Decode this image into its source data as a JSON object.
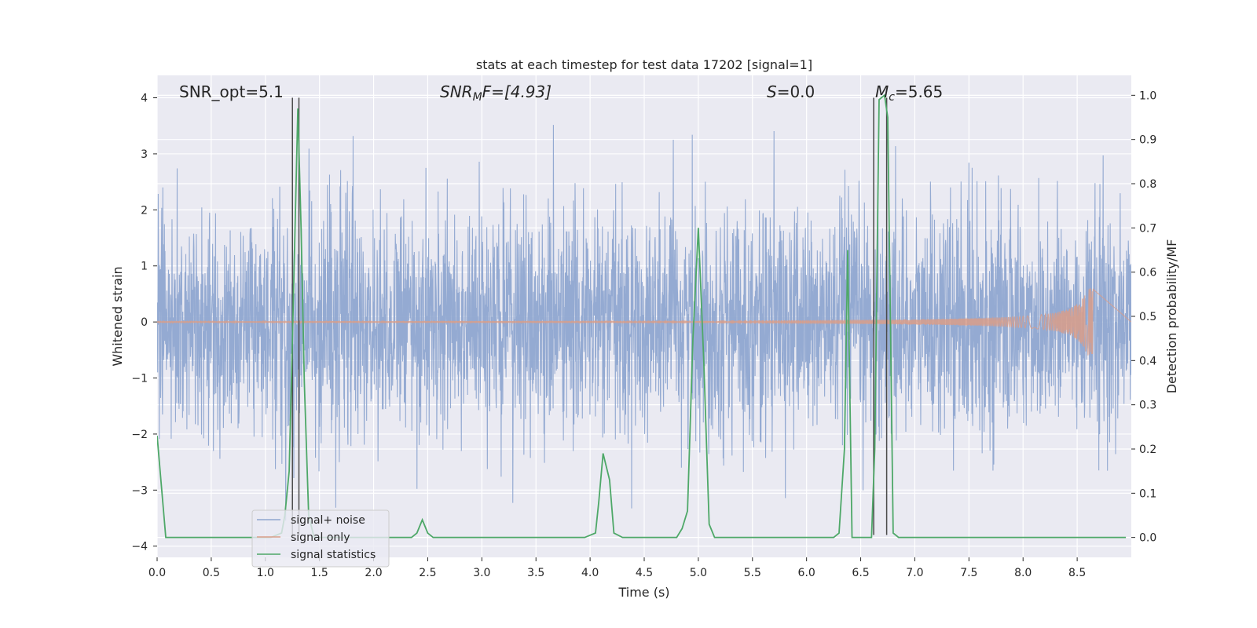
{
  "chart_data": {
    "type": "line",
    "title": "stats at each timestep for test data 17202 [signal=1]",
    "xlabel": "Time (s)",
    "ylabel_left": "Whitened strain",
    "ylabel_right": "Detection probability/MF",
    "xlim": [
      0.0,
      9.0
    ],
    "ylim_left": [
      -4.2,
      4.4
    ],
    "ylim_right": [
      -0.045,
      1.045
    ],
    "x_ticks": [
      "0.0",
      "0.5",
      "1.0",
      "1.5",
      "2.0",
      "2.5",
      "3.0",
      "3.5",
      "4.0",
      "4.5",
      "5.0",
      "5.5",
      "6.0",
      "6.5",
      "7.0",
      "7.5",
      "8.0",
      "8.5"
    ],
    "y_ticks_left": [
      "−4",
      "−3",
      "−2",
      "−1",
      "0",
      "1",
      "2",
      "3",
      "4"
    ],
    "y_ticks_right": [
      "0.0",
      "0.1",
      "0.2",
      "0.3",
      "0.4",
      "0.5",
      "0.6",
      "0.7",
      "0.8",
      "0.9",
      "1.0"
    ],
    "annotations": [
      "SNR_opt=5.1",
      "SNR",
      "M",
      "F=[4.93]",
      "S",
      "=0.0",
      "M",
      "c",
      "=5.65"
    ],
    "legend": [
      "signal+ noise",
      "signal only",
      "signal statistics"
    ],
    "series": [
      {
        "name": "signal+ noise",
        "color": "#8fa6d0",
        "description": "dense noise with standard deviation ~1",
        "noise_band": [
          -1.45,
          1.65
        ],
        "x_range": [
          0.0,
          9.0
        ]
      },
      {
        "name": "signal only",
        "color": "#d99e8a",
        "x_range": [
          0.0,
          8.65
        ],
        "amplitude_end": 0.6
      },
      {
        "name": "signal statistics",
        "color": "#4ea868",
        "axis": "right",
        "x": [
          0.0,
          0.08,
          0.15,
          0.25,
          0.35,
          0.45,
          0.55,
          0.65,
          0.75,
          0.85,
          0.95,
          1.05,
          1.15,
          1.18,
          1.22,
          1.26,
          1.3,
          1.33,
          1.36,
          1.4,
          1.45,
          1.55,
          1.65,
          1.75,
          1.85,
          1.95,
          2.05,
          2.15,
          2.25,
          2.35,
          2.4,
          2.45,
          2.5,
          2.55,
          2.65,
          2.75,
          2.85,
          2.95,
          3.05,
          3.15,
          3.25,
          3.35,
          3.45,
          3.55,
          3.65,
          3.75,
          3.85,
          3.95,
          4.05,
          4.08,
          4.12,
          4.18,
          4.22,
          4.3,
          4.4,
          4.5,
          4.6,
          4.7,
          4.8,
          4.85,
          4.9,
          4.95,
          5.0,
          5.05,
          5.1,
          5.15,
          5.25,
          5.35,
          5.45,
          5.55,
          5.65,
          5.75,
          5.85,
          5.95,
          6.05,
          6.15,
          6.25,
          6.3,
          6.35,
          6.38,
          6.42,
          6.5,
          6.6,
          6.63,
          6.67,
          6.72,
          6.75,
          6.8,
          6.85,
          6.95,
          7.05,
          7.15,
          7.25,
          7.35,
          7.45,
          7.55,
          7.65,
          7.75,
          7.85,
          7.95,
          8.05,
          8.15,
          8.25,
          8.35,
          8.45,
          8.55,
          8.65,
          8.75,
          8.85,
          8.95
        ],
        "y": [
          0.23,
          0.0,
          0.0,
          0.0,
          0.0,
          0.0,
          0.0,
          0.0,
          0.0,
          0.0,
          0.0,
          0.0,
          0.01,
          0.05,
          0.15,
          0.55,
          0.97,
          0.7,
          0.35,
          0.05,
          0.0,
          0.0,
          0.0,
          0.0,
          0.0,
          0.0,
          0.0,
          0.0,
          0.0,
          0.0,
          0.01,
          0.04,
          0.01,
          0.0,
          0.0,
          0.0,
          0.0,
          0.0,
          0.0,
          0.0,
          0.0,
          0.0,
          0.0,
          0.0,
          0.0,
          0.0,
          0.0,
          0.0,
          0.01,
          0.08,
          0.19,
          0.13,
          0.01,
          0.0,
          0.0,
          0.0,
          0.0,
          0.0,
          0.0,
          0.02,
          0.06,
          0.45,
          0.7,
          0.4,
          0.03,
          0.0,
          0.0,
          0.0,
          0.0,
          0.0,
          0.0,
          0.0,
          0.0,
          0.0,
          0.0,
          0.0,
          0.0,
          0.01,
          0.2,
          0.65,
          0.0,
          0.0,
          0.0,
          0.2,
          0.99,
          1.0,
          0.95,
          0.01,
          0.0,
          0.0,
          0.0,
          0.0,
          0.0,
          0.0,
          0.0,
          0.0,
          0.0,
          0.0,
          0.0,
          0.0,
          0.0,
          0.0,
          0.0,
          0.0,
          0.0,
          0.0,
          0.0,
          0.0,
          0.0,
          0.0
        ]
      }
    ],
    "vertical_lines": [
      1.25,
      1.31,
      6.62,
      6.74
    ]
  }
}
